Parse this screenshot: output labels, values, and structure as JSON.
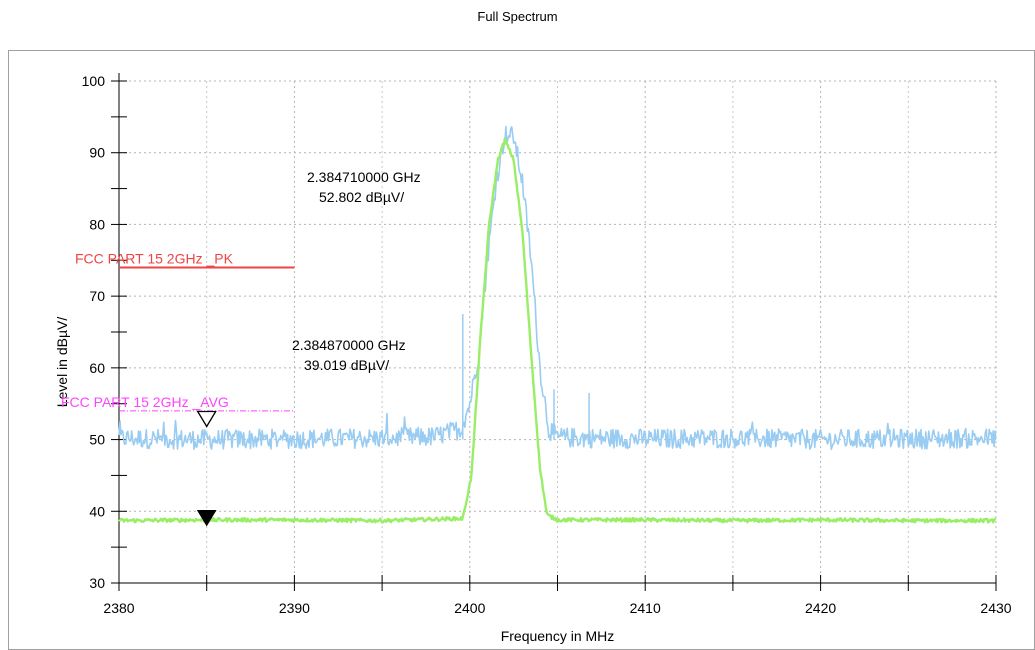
{
  "title": "Full Spectrum",
  "chart_data": {
    "type": "line",
    "title": "Full Spectrum",
    "xlabel": "Frequency in MHz",
    "ylabel": "Level in dBµV/",
    "xlim": [
      2380,
      2430
    ],
    "ylim": [
      30,
      100
    ],
    "xticks": [
      2380,
      2390,
      2400,
      2410,
      2420,
      2430
    ],
    "yticks": [
      30,
      40,
      50,
      60,
      70,
      80,
      90,
      100
    ],
    "grid": true,
    "colors": {
      "peak": "#99ccf2",
      "average": "#99ee66",
      "limit_pk": "#ee4444",
      "limit_avg": "#ff44ff"
    },
    "limit_lines": [
      {
        "label": "FCC PART 15 2GHz _PK",
        "value": 74,
        "x": [
          2380,
          2390
        ],
        "color": "#ee4444",
        "style": "solid"
      },
      {
        "label": "FCC PART 15 2GHz _AVG",
        "value": 54,
        "x": [
          2380,
          2390
        ],
        "color": "#ff44ff",
        "style": "dashdot"
      }
    ],
    "series": [
      {
        "trace": "peak",
        "color": "#99ccf2",
        "points": [
          [
            2380,
            50.2
          ],
          [
            2385,
            50.0
          ],
          [
            2390,
            50.1
          ],
          [
            2395,
            50.2
          ],
          [
            2398,
            50.4
          ],
          [
            2399.5,
            51.5
          ],
          [
            2400,
            55
          ],
          [
            2400.5,
            62
          ],
          [
            2401,
            75
          ],
          [
            2401.5,
            86
          ],
          [
            2402,
            92.5
          ],
          [
            2402.5,
            92.3
          ],
          [
            2403,
            86
          ],
          [
            2403.5,
            75
          ],
          [
            2404,
            60
          ],
          [
            2404.5,
            51.5
          ],
          [
            2405,
            50.3
          ],
          [
            2410,
            50.1
          ],
          [
            2415,
            50.2
          ],
          [
            2420,
            50.0
          ],
          [
            2425,
            50.1
          ],
          [
            2430,
            50.2
          ]
        ]
      },
      {
        "trace": "average",
        "color": "#99ee66",
        "points": [
          [
            2380,
            38.7
          ],
          [
            2385,
            38.8
          ],
          [
            2390,
            38.8
          ],
          [
            2395,
            38.7
          ],
          [
            2399.6,
            39.0
          ],
          [
            2400.1,
            45
          ],
          [
            2400.6,
            64
          ],
          [
            2401.1,
            80
          ],
          [
            2401.6,
            89
          ],
          [
            2402,
            91.8
          ],
          [
            2402.5,
            89
          ],
          [
            2403,
            79
          ],
          [
            2403.5,
            62
          ],
          [
            2404,
            46
          ],
          [
            2404.4,
            39.5
          ],
          [
            2405,
            38.8
          ],
          [
            2410,
            38.8
          ],
          [
            2415,
            38.7
          ],
          [
            2420,
            38.8
          ],
          [
            2425,
            38.7
          ],
          [
            2430,
            38.7
          ]
        ]
      }
    ],
    "markers": [
      {
        "freq_label": "2.384710000 GHz",
        "level_label": "52.802 dBµV/",
        "x": 2385,
        "y": 52.8,
        "symbol": "open-triangle-down"
      },
      {
        "freq_label": "2.384870000 GHz",
        "level_label": "39.019 dBµV/",
        "x": 2385,
        "y": 39.0,
        "symbol": "filled-triangle-down"
      }
    ]
  }
}
